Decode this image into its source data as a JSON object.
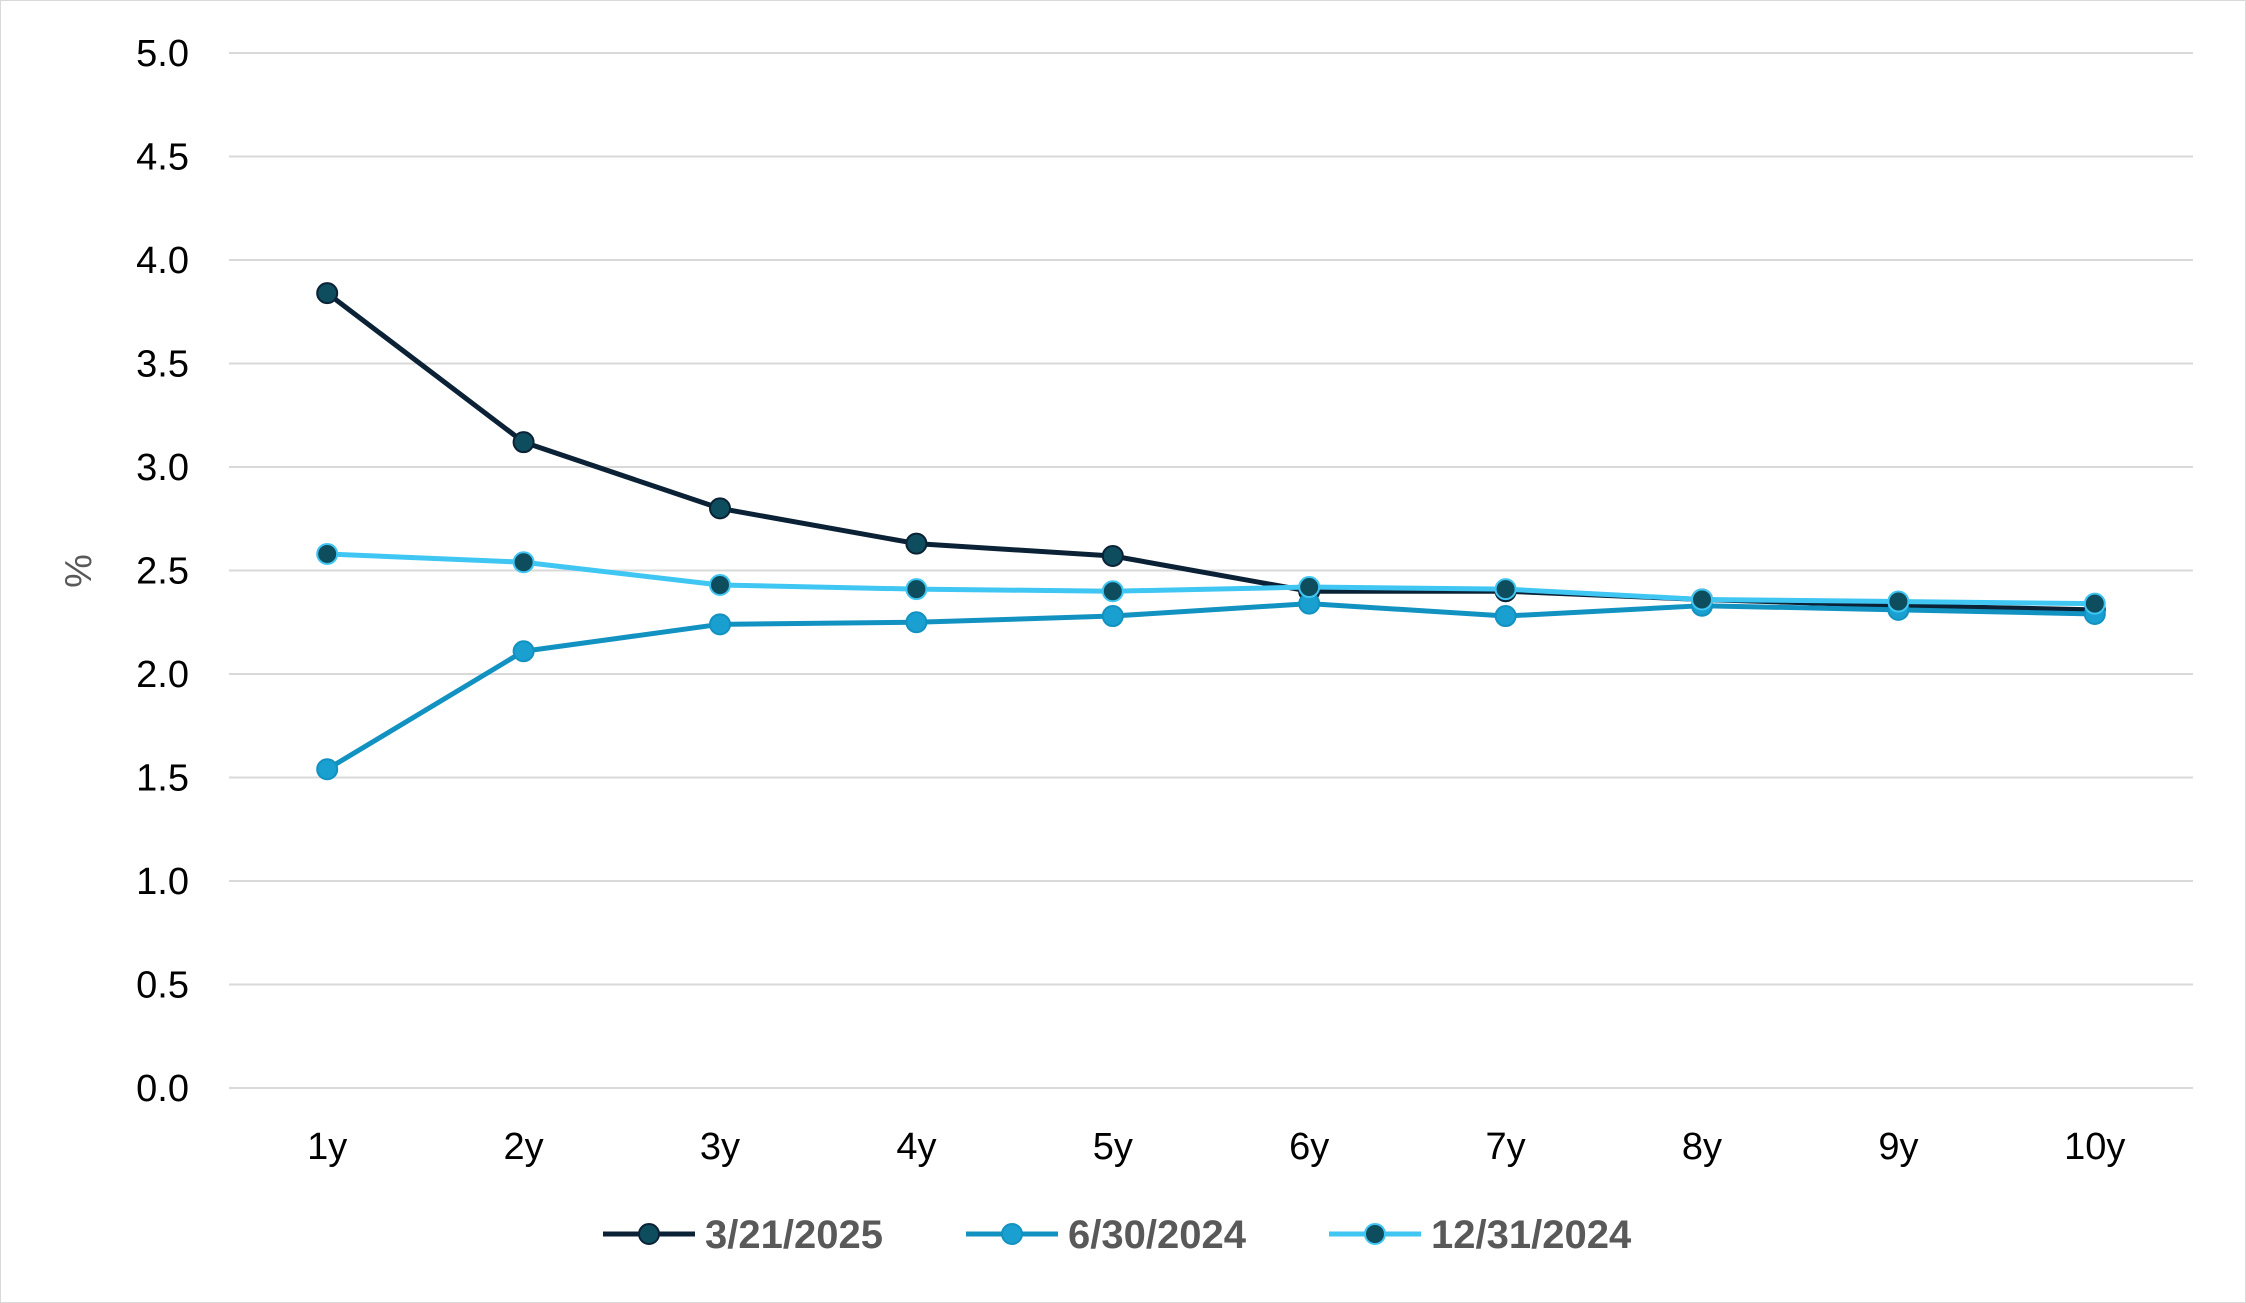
{
  "chart_data": {
    "type": "line",
    "title": "",
    "xlabel": "",
    "ylabel": "%",
    "ylim": [
      0,
      5
    ],
    "yticks": [
      "0.0",
      "0.5",
      "1.0",
      "1.5",
      "2.0",
      "2.5",
      "3.0",
      "3.5",
      "4.0",
      "4.5",
      "5.0"
    ],
    "categories": [
      "1y",
      "2y",
      "3y",
      "4y",
      "5y",
      "6y",
      "7y",
      "8y",
      "9y",
      "10y"
    ],
    "grid": true,
    "legend_position": "bottom",
    "series": [
      {
        "name": "3/21/2025",
        "line_color": "#0b2236",
        "marker_color": "#0d4d5e",
        "values": [
          3.84,
          3.12,
          2.8,
          2.63,
          2.57,
          2.4,
          2.4,
          2.36,
          2.33,
          2.31
        ]
      },
      {
        "name": "6/30/2024",
        "line_color": "#1192c1",
        "marker_color": "#1aa0d0",
        "values": [
          1.54,
          2.11,
          2.24,
          2.25,
          2.28,
          2.34,
          2.28,
          2.33,
          2.31,
          2.29
        ]
      },
      {
        "name": "12/31/2024",
        "line_color": "#3fc6f2",
        "marker_color": "#0d4d5e",
        "values": [
          2.58,
          2.54,
          2.43,
          2.41,
          2.4,
          2.42,
          2.41,
          2.36,
          2.35,
          2.34
        ]
      }
    ]
  }
}
